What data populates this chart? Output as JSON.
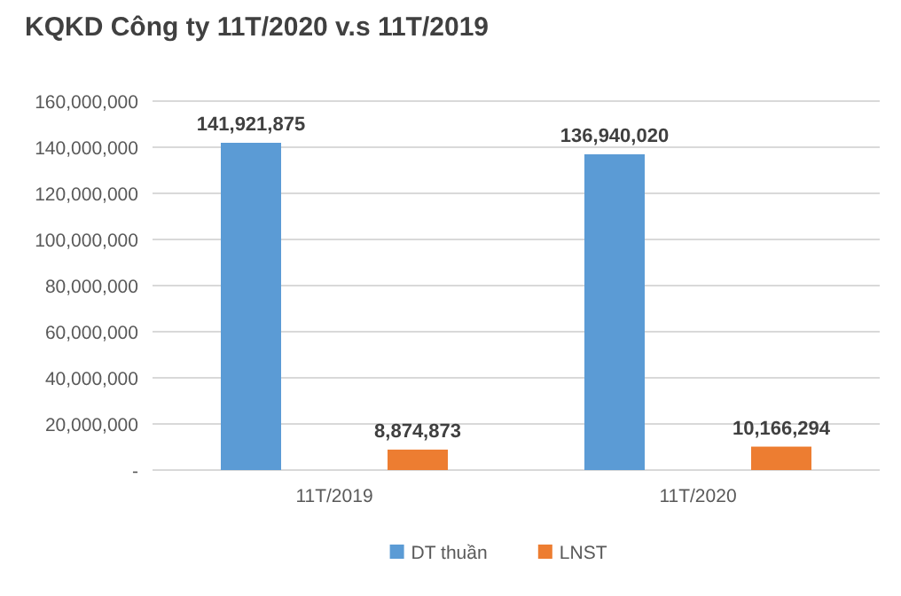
{
  "chart_data": {
    "type": "bar",
    "title": "KQKD Công ty 11T/2020 v.s 11T/2019",
    "categories": [
      "11T/2019",
      "11T/2020"
    ],
    "series": [
      {
        "name": "DT thuần",
        "color": "#5b9bd5",
        "values": [
          141921875,
          136940020
        ],
        "value_labels": [
          "141,921,875",
          "136,940,020"
        ]
      },
      {
        "name": "LNST",
        "color": "#ed7d31",
        "values": [
          8874873,
          10166294
        ],
        "value_labels": [
          "8,874,873",
          "10,166,294"
        ]
      }
    ],
    "ylim": [
      0,
      160000000
    ],
    "yticks": [
      {
        "value": 0,
        "label": "-"
      },
      {
        "value": 20000000,
        "label": "20,000,000"
      },
      {
        "value": 40000000,
        "label": "40,000,000"
      },
      {
        "value": 60000000,
        "label": "60,000,000"
      },
      {
        "value": 80000000,
        "label": "80,000,000"
      },
      {
        "value": 100000000,
        "label": "100,000,000"
      },
      {
        "value": 120000000,
        "label": "120,000,000"
      },
      {
        "value": 140000000,
        "label": "140,000,000"
      },
      {
        "value": 160000000,
        "label": "160,000,000"
      }
    ],
    "grid": "y",
    "legend": "bottom"
  }
}
